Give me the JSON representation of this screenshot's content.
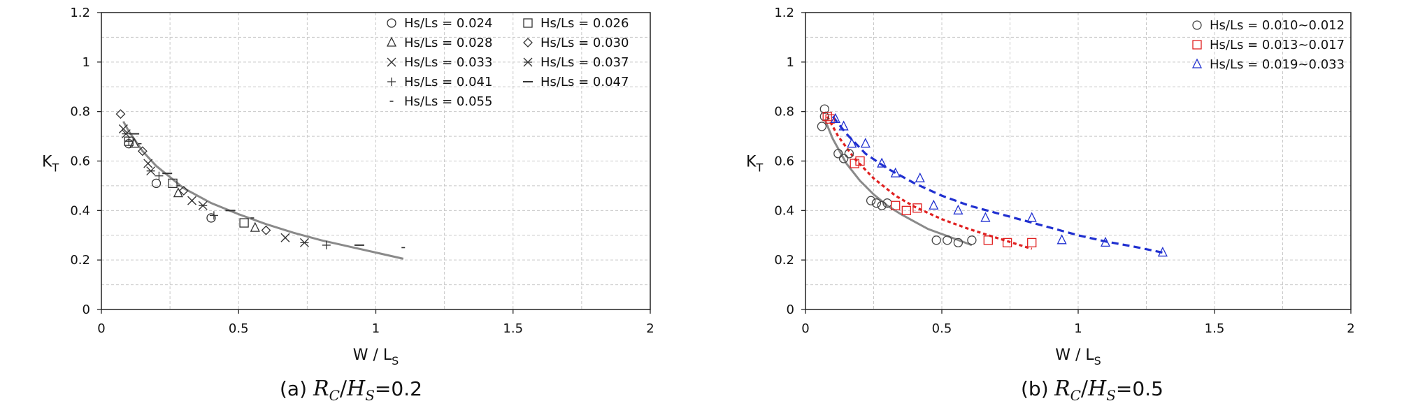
{
  "chart_data": [
    {
      "type": "scatter",
      "caption_prefix": "(a) ",
      "caption_math_num": "R",
      "caption_math_num_sub": "C",
      "caption_math_den": "H",
      "caption_math_den_sub": "S",
      "caption_value": "=0.2",
      "xlabel_main": "W / L",
      "xlabel_sub": "S",
      "ylabel_main": "K",
      "ylabel_sub": "T",
      "xlim": [
        0,
        2
      ],
      "ylim": [
        0,
        1.2
      ],
      "x_ticks": [
        "0",
        "0.5",
        "1",
        "1.5",
        "2"
      ],
      "y_ticks": [
        "0",
        "0.2",
        "0.4",
        "0.6",
        "0.8",
        "1",
        "1.2"
      ],
      "grid": true,
      "legend_position": "top-right",
      "legend_columns": 2,
      "series": [
        {
          "name": "Hs/Ls = 0.024",
          "marker": "circle",
          "color": "#333333",
          "points": [
            [
              0.1,
              0.67
            ],
            [
              0.2,
              0.51
            ],
            [
              0.4,
              0.37
            ]
          ]
        },
        {
          "name": "Hs/Ls = 0.026",
          "marker": "square",
          "color": "#333333",
          "points": [
            [
              0.1,
              0.68
            ],
            [
              0.26,
              0.51
            ],
            [
              0.52,
              0.35
            ]
          ]
        },
        {
          "name": "Hs/Ls = 0.028",
          "marker": "triangle",
          "color": "#333333",
          "points": [
            [
              0.12,
              0.67
            ],
            [
              0.28,
              0.47
            ],
            [
              0.56,
              0.33
            ]
          ]
        },
        {
          "name": "Hs/Ls = 0.030",
          "marker": "diamond",
          "color": "#333333",
          "points": [
            [
              0.07,
              0.79
            ],
            [
              0.15,
              0.64
            ],
            [
              0.3,
              0.48
            ],
            [
              0.6,
              0.32
            ]
          ]
        },
        {
          "name": "Hs/Ls = 0.033",
          "marker": "x",
          "color": "#333333",
          "points": [
            [
              0.08,
              0.73
            ],
            [
              0.17,
              0.59
            ],
            [
              0.33,
              0.44
            ],
            [
              0.67,
              0.29
            ]
          ]
        },
        {
          "name": "Hs/Ls = 0.037",
          "marker": "asterisk",
          "color": "#333333",
          "points": [
            [
              0.09,
              0.71
            ],
            [
              0.18,
              0.56
            ],
            [
              0.37,
              0.42
            ],
            [
              0.74,
              0.27
            ]
          ]
        },
        {
          "name": "Hs/Ls = 0.041",
          "marker": "plus",
          "color": "#333333",
          "points": [
            [
              0.1,
              0.68
            ],
            [
              0.21,
              0.54
            ],
            [
              0.41,
              0.38
            ],
            [
              0.82,
              0.26
            ]
          ]
        },
        {
          "name": "Hs/Ls = 0.047",
          "marker": "dash",
          "color": "#333333",
          "points": [
            [
              0.12,
              0.71
            ],
            [
              0.24,
              0.55
            ],
            [
              0.47,
              0.4
            ],
            [
              0.94,
              0.26
            ]
          ]
        },
        {
          "name": "Hs/Ls = 0.055",
          "marker": "dot",
          "color": "#333333",
          "points": [
            [
              0.14,
              0.67
            ],
            [
              0.28,
              0.5
            ],
            [
              0.55,
              0.37
            ],
            [
              1.1,
              0.25
            ]
          ]
        }
      ],
      "fit_lines": [
        {
          "color": "#8a8a8a",
          "dash": "solid",
          "x_range": [
            0.08,
            1.1
          ],
          "points": [
            [
              0.08,
              0.76
            ],
            [
              0.1,
              0.72
            ],
            [
              0.15,
              0.64
            ],
            [
              0.2,
              0.58
            ],
            [
              0.3,
              0.49
            ],
            [
              0.4,
              0.43
            ],
            [
              0.5,
              0.385
            ],
            [
              0.6,
              0.345
            ],
            [
              0.7,
              0.31
            ],
            [
              0.8,
              0.28
            ],
            [
              0.9,
              0.255
            ],
            [
              1.0,
              0.23
            ],
            [
              1.1,
              0.205
            ]
          ]
        }
      ]
    },
    {
      "type": "scatter",
      "caption_prefix": "(b) ",
      "caption_math_num": "R",
      "caption_math_num_sub": "C",
      "caption_math_den": "H",
      "caption_math_den_sub": "S",
      "caption_value": "=0.5",
      "xlabel_main": "W / L",
      "xlabel_sub": "S",
      "ylabel_main": "K",
      "ylabel_sub": "T",
      "xlim": [
        0,
        2
      ],
      "ylim": [
        0,
        1.2
      ],
      "x_ticks": [
        "0",
        "0.5",
        "1",
        "1.5",
        "2"
      ],
      "y_ticks": [
        "0",
        "0.2",
        "0.4",
        "0.6",
        "0.8",
        "1",
        "1.2"
      ],
      "grid": true,
      "legend_position": "top-right",
      "legend_columns": 1,
      "series": [
        {
          "name": "Hs/Ls = 0.010~0.012",
          "marker": "circle",
          "color": "#444444",
          "points": [
            [
              0.06,
              0.74
            ],
            [
              0.07,
              0.78
            ],
            [
              0.07,
              0.81
            ],
            [
              0.12,
              0.63
            ],
            [
              0.14,
              0.61
            ],
            [
              0.16,
              0.63
            ],
            [
              0.24,
              0.44
            ],
            [
              0.26,
              0.43
            ],
            [
              0.28,
              0.42
            ],
            [
              0.3,
              0.43
            ],
            [
              0.48,
              0.28
            ],
            [
              0.52,
              0.28
            ],
            [
              0.56,
              0.27
            ],
            [
              0.61,
              0.28
            ]
          ]
        },
        {
          "name": "Hs/Ls = 0.013~0.017",
          "marker": "square",
          "color": "#e02020",
          "points": [
            [
              0.08,
              0.78
            ],
            [
              0.09,
              0.77
            ],
            [
              0.18,
              0.59
            ],
            [
              0.2,
              0.6
            ],
            [
              0.33,
              0.42
            ],
            [
              0.37,
              0.4
            ],
            [
              0.41,
              0.41
            ],
            [
              0.67,
              0.28
            ],
            [
              0.74,
              0.27
            ],
            [
              0.83,
              0.27
            ]
          ]
        },
        {
          "name": "Hs/Ls = 0.019~0.033",
          "marker": "triangle",
          "color": "#2030d0",
          "points": [
            [
              0.11,
              0.77
            ],
            [
              0.14,
              0.74
            ],
            [
              0.17,
              0.67
            ],
            [
              0.22,
              0.67
            ],
            [
              0.28,
              0.59
            ],
            [
              0.33,
              0.55
            ],
            [
              0.42,
              0.53
            ],
            [
              0.47,
              0.42
            ],
            [
              0.56,
              0.4
            ],
            [
              0.66,
              0.37
            ],
            [
              0.83,
              0.37
            ],
            [
              0.94,
              0.28
            ],
            [
              1.1,
              0.27
            ],
            [
              1.31,
              0.23
            ]
          ]
        }
      ],
      "fit_lines": [
        {
          "color": "#8a8a8a",
          "dash": "solid",
          "points": [
            [
              0.07,
              0.77
            ],
            [
              0.1,
              0.69
            ],
            [
              0.15,
              0.59
            ],
            [
              0.2,
              0.52
            ],
            [
              0.25,
              0.465
            ],
            [
              0.3,
              0.42
            ],
            [
              0.35,
              0.385
            ],
            [
              0.4,
              0.355
            ],
            [
              0.45,
              0.325
            ],
            [
              0.5,
              0.305
            ],
            [
              0.55,
              0.285
            ],
            [
              0.61,
              0.26
            ]
          ]
        },
        {
          "color": "#e02020",
          "dash": "dotted",
          "points": [
            [
              0.08,
              0.78
            ],
            [
              0.12,
              0.7
            ],
            [
              0.18,
              0.61
            ],
            [
              0.25,
              0.53
            ],
            [
              0.33,
              0.46
            ],
            [
              0.4,
              0.415
            ],
            [
              0.5,
              0.365
            ],
            [
              0.6,
              0.325
            ],
            [
              0.7,
              0.29
            ],
            [
              0.83,
              0.245
            ]
          ]
        },
        {
          "color": "#2030d0",
          "dash": "dashed",
          "points": [
            [
              0.1,
              0.78
            ],
            [
              0.15,
              0.71
            ],
            [
              0.22,
              0.63
            ],
            [
              0.3,
              0.57
            ],
            [
              0.4,
              0.51
            ],
            [
              0.5,
              0.46
            ],
            [
              0.6,
              0.42
            ],
            [
              0.7,
              0.39
            ],
            [
              0.8,
              0.36
            ],
            [
              0.9,
              0.33
            ],
            [
              1.0,
              0.3
            ],
            [
              1.1,
              0.275
            ],
            [
              1.2,
              0.255
            ],
            [
              1.31,
              0.23
            ]
          ]
        }
      ]
    }
  ]
}
